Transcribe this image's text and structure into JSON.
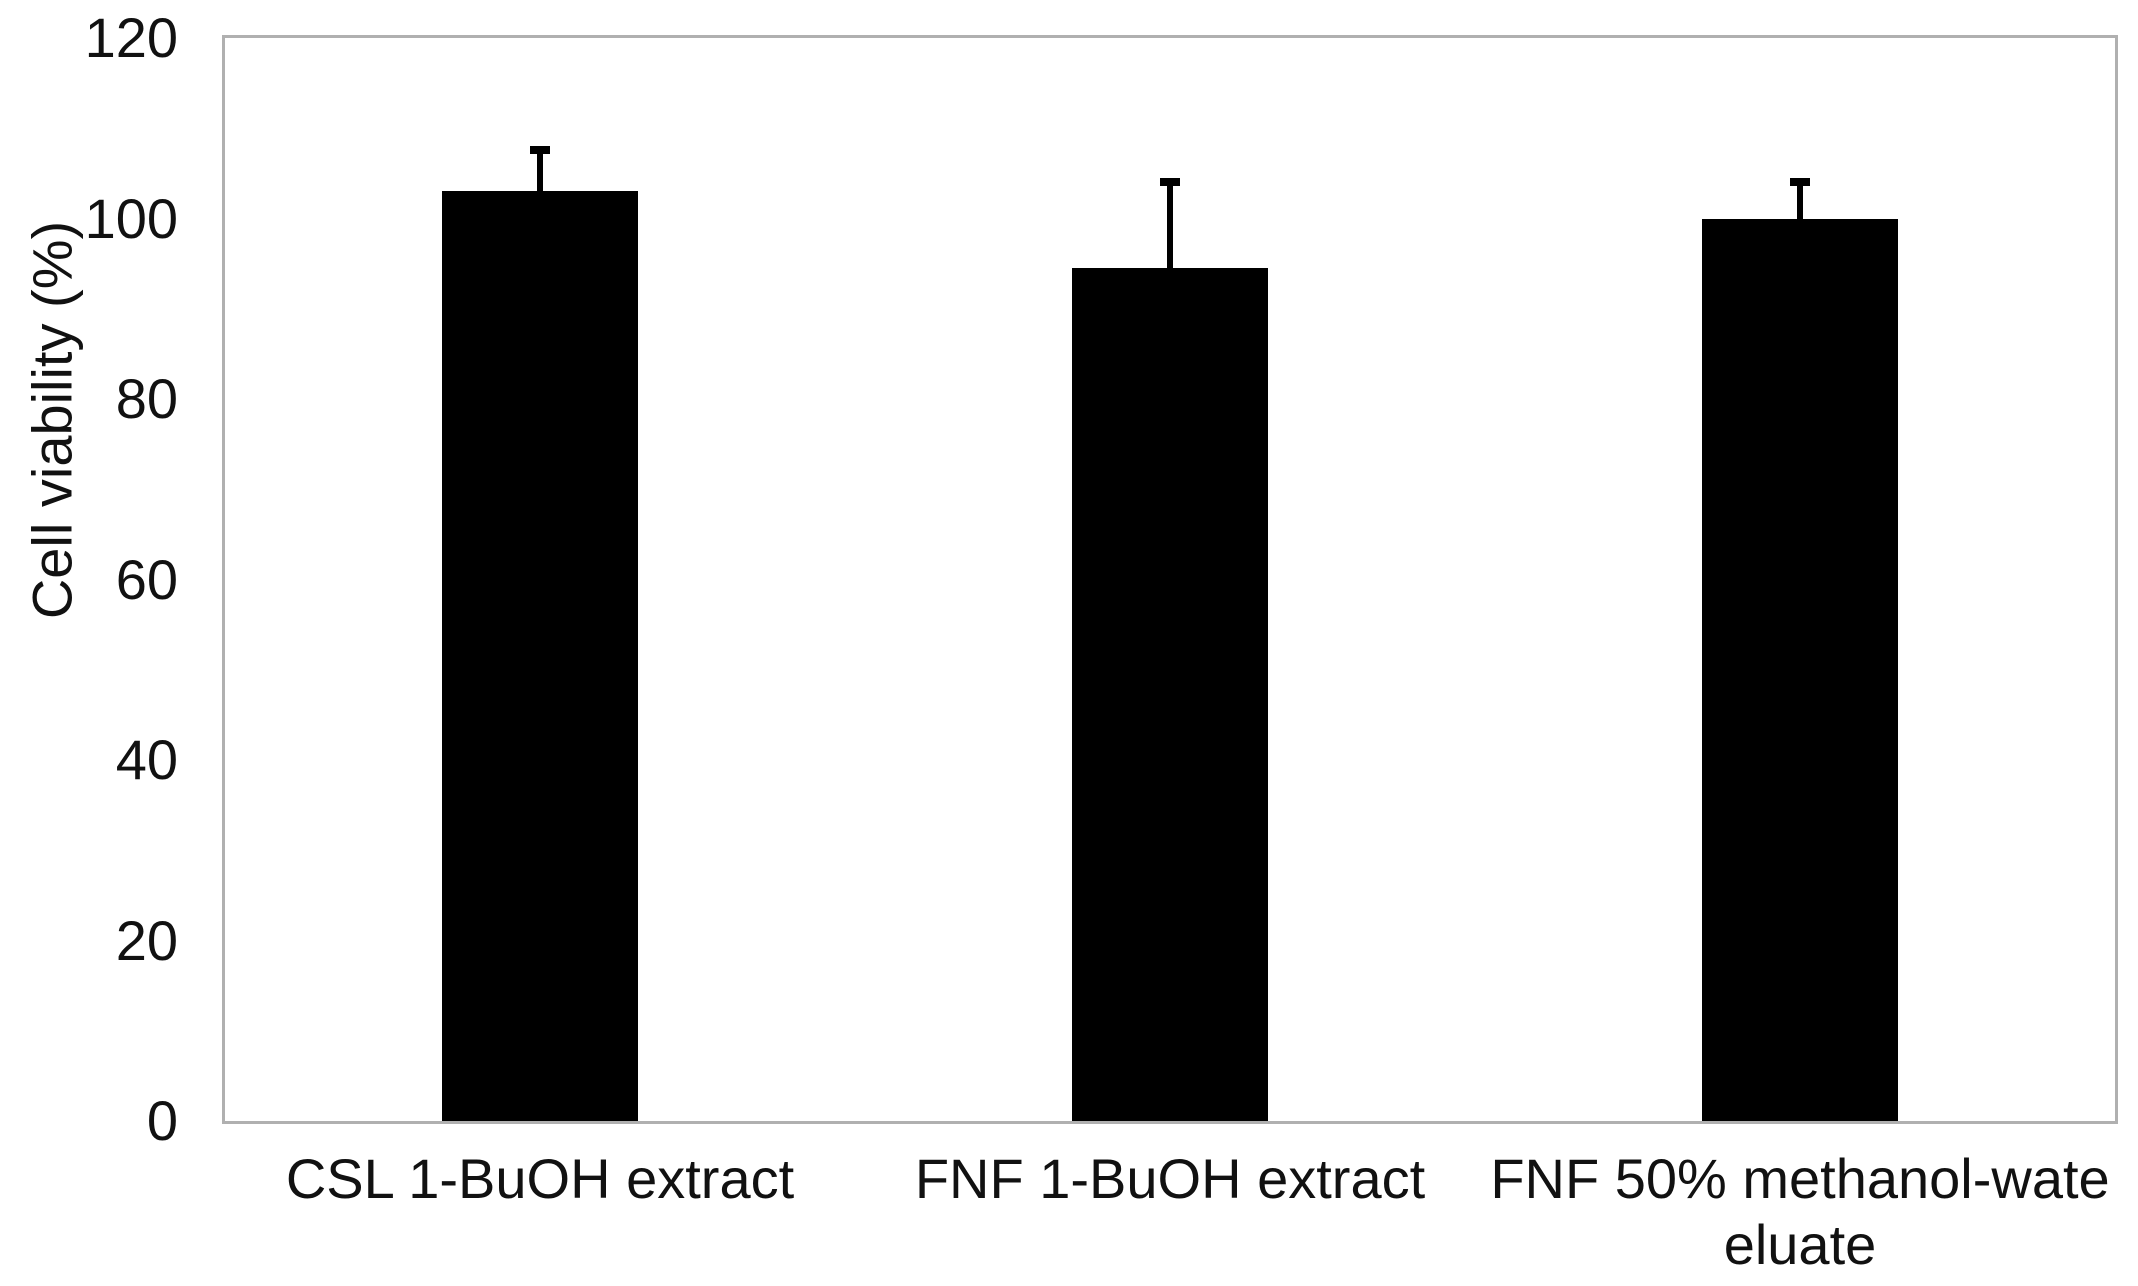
{
  "figure": {
    "background": "#ffffff"
  },
  "chart_data": {
    "type": "bar",
    "title": "",
    "ylabel": "Cell viability (%)",
    "xlabel": "",
    "ylim": [
      0,
      120
    ],
    "yticks": [
      0,
      20,
      40,
      60,
      80,
      100,
      120
    ],
    "categories": [
      "CSL 1-BuOH extract",
      "FNF 1-BuOH extract",
      "FNF 50% methanol-wate eluate"
    ],
    "category_label_lines": [
      [
        "CSL 1-BuOH extract"
      ],
      [
        "FNF 1-BuOH extract"
      ],
      [
        "FNF 50% methanol-wate",
        "eluate"
      ]
    ],
    "series": [
      {
        "name": "Cell viability",
        "values": [
          103,
          94.5,
          100
        ],
        "error_plus": [
          5,
          10,
          4.5
        ]
      }
    ],
    "grid": false,
    "legend_position": "none",
    "bar_color": "#000000",
    "error_bar_color": "#000000",
    "axis_frame_color": "#b0b0b0",
    "text_color": "#111111"
  }
}
